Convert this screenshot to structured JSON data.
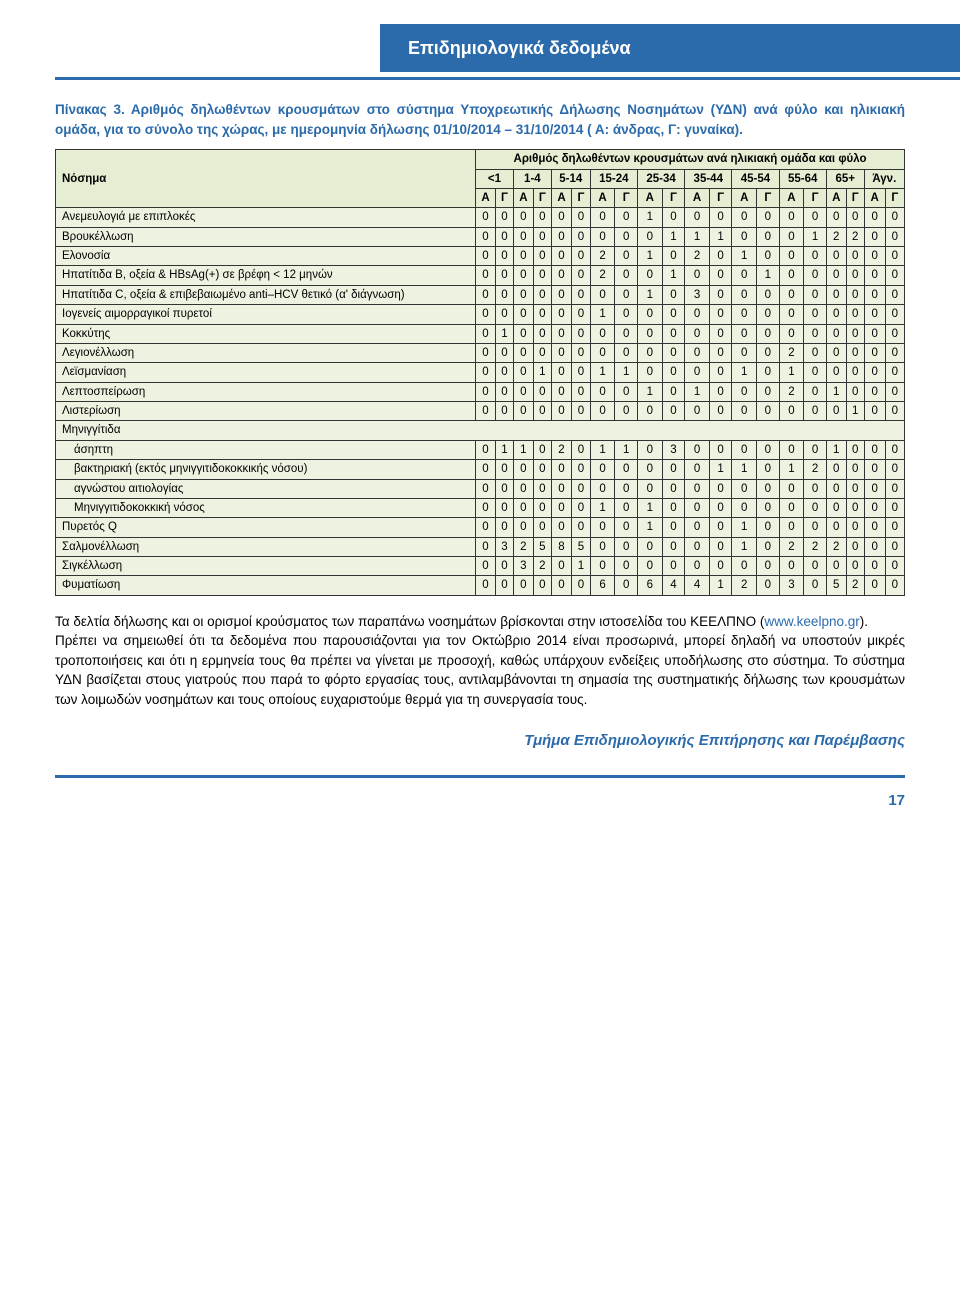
{
  "header": {
    "title": "Επιδημιολογικά δεδομένα"
  },
  "caption": {
    "label": "Πίνακας 3.",
    "text": " Αριθμός δηλωθέντων κρουσμάτων στο σύστημα Υποχρεωτικής Δήλωσης Νοσημάτων (ΥΔΝ) ανά φύλο και ηλικιακή ομάδα, για το σύνολο της χώρας, με ημερομηνία δήλωσης 01/10/2014 – 31/10/2014 ( Α: άνδρας, Γ: γυναίκα)."
  },
  "table": {
    "corner": "Νόσημα",
    "super_header": "Αριθμός δηλωθέντων κρουσμάτων ανά ηλικιακή ομάδα και φύλο",
    "age_groups": [
      "<1",
      "1-4",
      "5-14",
      "15-24",
      "25-34",
      "35-44",
      "45-54",
      "55-64",
      "65+",
      "Άγν."
    ],
    "sex_labels": [
      "Α",
      "Γ"
    ],
    "rows": [
      {
        "label": "Ανεμευλογιά με επιπλοκές",
        "v": [
          0,
          0,
          0,
          0,
          0,
          0,
          0,
          0,
          1,
          0,
          0,
          0,
          0,
          0,
          0,
          0,
          0,
          0,
          0,
          0
        ]
      },
      {
        "label": "Βρουκέλλωση",
        "v": [
          0,
          0,
          0,
          0,
          0,
          0,
          0,
          0,
          0,
          1,
          1,
          1,
          0,
          0,
          0,
          1,
          2,
          2,
          0,
          0
        ]
      },
      {
        "label": "Ελονοσία",
        "v": [
          0,
          0,
          0,
          0,
          0,
          0,
          2,
          0,
          1,
          0,
          2,
          0,
          1,
          0,
          0,
          0,
          0,
          0,
          0,
          0
        ]
      },
      {
        "label": "Ηπατίτιδα Β, οξεία & HBsAg(+) σε βρέφη < 12 μηνών",
        "v": [
          0,
          0,
          0,
          0,
          0,
          0,
          2,
          0,
          0,
          1,
          0,
          0,
          0,
          1,
          0,
          0,
          0,
          0,
          0,
          0
        ]
      },
      {
        "label": "Ηπατίτιδα C, οξεία & επιβεβαιωμένο anti–HCV θετικό (α' διάγνωση)",
        "v": [
          0,
          0,
          0,
          0,
          0,
          0,
          0,
          0,
          1,
          0,
          3,
          0,
          0,
          0,
          0,
          0,
          0,
          0,
          0,
          0
        ]
      },
      {
        "label": "Ιογενείς αιμορραγικοί πυρετοί",
        "v": [
          0,
          0,
          0,
          0,
          0,
          0,
          1,
          0,
          0,
          0,
          0,
          0,
          0,
          0,
          0,
          0,
          0,
          0,
          0,
          0
        ]
      },
      {
        "label": "Κοκκύτης",
        "v": [
          0,
          1,
          0,
          0,
          0,
          0,
          0,
          0,
          0,
          0,
          0,
          0,
          0,
          0,
          0,
          0,
          0,
          0,
          0,
          0
        ]
      },
      {
        "label": "Λεγιονέλλωση",
        "v": [
          0,
          0,
          0,
          0,
          0,
          0,
          0,
          0,
          0,
          0,
          0,
          0,
          0,
          0,
          2,
          0,
          0,
          0,
          0,
          0
        ]
      },
      {
        "label": "Λεϊσμανίαση",
        "v": [
          0,
          0,
          0,
          1,
          0,
          0,
          1,
          1,
          0,
          0,
          0,
          0,
          1,
          0,
          1,
          0,
          0,
          0,
          0,
          0
        ]
      },
      {
        "label": "Λεπτοσπείρωση",
        "v": [
          0,
          0,
          0,
          0,
          0,
          0,
          0,
          0,
          1,
          0,
          1,
          0,
          0,
          0,
          2,
          0,
          1,
          0,
          0,
          0
        ]
      },
      {
        "label": "Λιστερίωση",
        "v": [
          0,
          0,
          0,
          0,
          0,
          0,
          0,
          0,
          0,
          0,
          0,
          0,
          0,
          0,
          0,
          0,
          0,
          1,
          0,
          0
        ]
      },
      {
        "label": "Μηνιγγίτιδα",
        "header": true
      },
      {
        "label": "άσηπτη",
        "indent": true,
        "v": [
          0,
          1,
          1,
          0,
          2,
          0,
          1,
          1,
          0,
          3,
          0,
          0,
          0,
          0,
          0,
          0,
          1,
          0,
          0,
          0
        ]
      },
      {
        "label": "βακτηριακή (εκτός μηνιγγιτιδοκοκκικής νόσου)",
        "indent": true,
        "v": [
          0,
          0,
          0,
          0,
          0,
          0,
          0,
          0,
          0,
          0,
          0,
          1,
          1,
          0,
          1,
          2,
          0,
          0,
          0,
          0
        ]
      },
      {
        "label": "αγνώστου αιτιολογίας",
        "indent": true,
        "v": [
          0,
          0,
          0,
          0,
          0,
          0,
          0,
          0,
          0,
          0,
          0,
          0,
          0,
          0,
          0,
          0,
          0,
          0,
          0,
          0
        ]
      },
      {
        "label": "Μηνιγγιτιδοκοκκική νόσος",
        "indent": true,
        "v": [
          0,
          0,
          0,
          0,
          0,
          0,
          1,
          0,
          1,
          0,
          0,
          0,
          0,
          0,
          0,
          0,
          0,
          0,
          0,
          0
        ]
      },
      {
        "label": "Πυρετός Q",
        "v": [
          0,
          0,
          0,
          0,
          0,
          0,
          0,
          0,
          1,
          0,
          0,
          0,
          1,
          0,
          0,
          0,
          0,
          0,
          0,
          0
        ]
      },
      {
        "label": "Σαλμονέλλωση",
        "v": [
          0,
          3,
          2,
          5,
          8,
          5,
          0,
          0,
          0,
          0,
          0,
          0,
          1,
          0,
          2,
          2,
          2,
          0,
          0,
          0
        ]
      },
      {
        "label": "Σιγκέλλωση",
        "v": [
          0,
          0,
          3,
          2,
          0,
          1,
          0,
          0,
          0,
          0,
          0,
          0,
          0,
          0,
          0,
          0,
          0,
          0,
          0,
          0
        ]
      },
      {
        "label": "Φυματίωση",
        "v": [
          0,
          0,
          0,
          0,
          0,
          0,
          6,
          0,
          6,
          4,
          4,
          1,
          2,
          0,
          3,
          0,
          5,
          2,
          0,
          0
        ]
      }
    ]
  },
  "paragraph": {
    "p1a": "Τα δελτία δήλωσης και οι ορισμοί κρούσματος των παραπάνω νοσημάτων βρίσκονται στην ιστοσελίδα του ΚΕΕΛΠΝΟ (",
    "link": "www.keelpno.gr",
    "p1b": ").",
    "p2": "Πρέπει να σημειωθεί ότι τα δεδομένα που παρουσιάζονται για τον Οκτώβριο 2014 είναι προσωρινά, μπορεί δηλαδή να υποστούν μικρές τροποποιήσεις και ότι η ερμηνεία τους θα πρέπει να γίνεται με προσοχή, καθώς υπάρχουν ενδείξεις υποδήλωσης στο σύστημα. Το σύστημα ΥΔΝ βασίζεται στους γιατρούς που παρά το φόρτο εργασίας τους, αντιλαμβάνονται τη σημασία της συστηματικής δήλωσης των κρουσμάτων των λοιμωδών νοσημάτων και τους οποίους ευχαριστούμε θερμά για τη συνεργασία τους."
  },
  "signature": "Τμήμα Επιδημιολογικής Επιτήρησης και Παρέμβασης",
  "page_number": "17",
  "style": {
    "header_bg": "#2c6bab",
    "table_bg": "#eef2e0",
    "table_header_bg": "#e5eed2",
    "border_color": "#333333",
    "accent": "#2c6bab"
  }
}
